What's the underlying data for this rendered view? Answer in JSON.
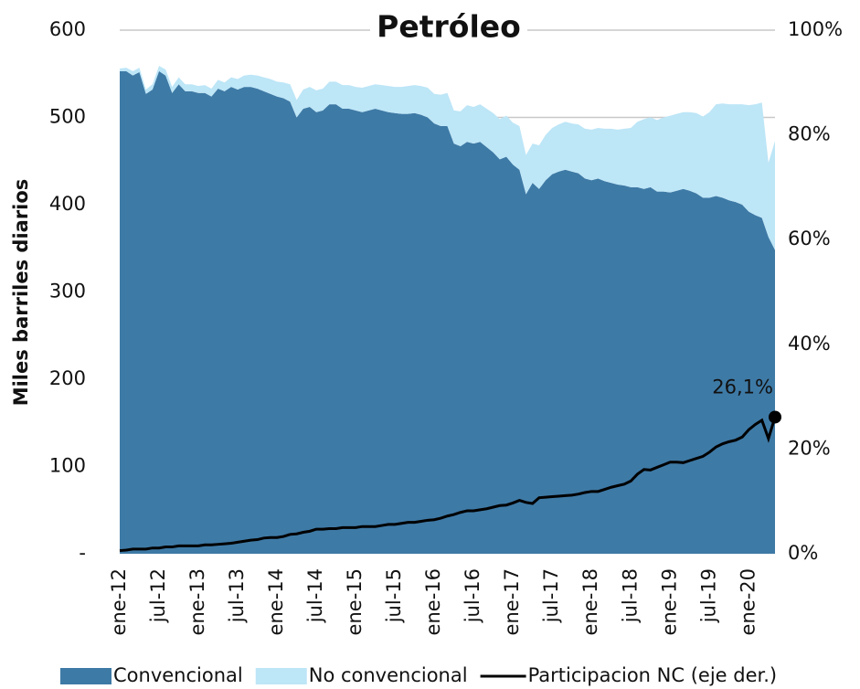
{
  "chart_data": {
    "type": "stacked-area-line",
    "title": "Petróleo",
    "y_label": "Miles barriles diarios",
    "categories": [
      "ene-12",
      null,
      null,
      null,
      null,
      null,
      "jul-12",
      null,
      null,
      null,
      null,
      null,
      "ene-13",
      null,
      null,
      null,
      null,
      null,
      "jul-13",
      null,
      null,
      null,
      null,
      null,
      "ene-14",
      null,
      null,
      null,
      null,
      null,
      "jul-14",
      null,
      null,
      null,
      null,
      null,
      "ene-15",
      null,
      null,
      null,
      null,
      null,
      "jul-15",
      null,
      null,
      null,
      null,
      null,
      "ene-16",
      null,
      null,
      null,
      null,
      null,
      "jul-16",
      null,
      null,
      null,
      null,
      null,
      "ene-17",
      null,
      null,
      null,
      null,
      null,
      "jul-17",
      null,
      null,
      null,
      null,
      null,
      "ene-18",
      null,
      null,
      null,
      null,
      null,
      "jul-18",
      null,
      null,
      null,
      null,
      null,
      "ene-19",
      null,
      null,
      null,
      null,
      null,
      "jul-19",
      null,
      null,
      null,
      null,
      null,
      "ene-20",
      null,
      null,
      null,
      null
    ],
    "series": [
      {
        "name": "Convencional",
        "color": "#3e7aa6",
        "axis": "y",
        "values": [
          553,
          553,
          548,
          552,
          527,
          532,
          553,
          548,
          528,
          538,
          530,
          530,
          528,
          528,
          524,
          533,
          530,
          535,
          532,
          535,
          535,
          533,
          530,
          527,
          524,
          522,
          518,
          500,
          510,
          512,
          506,
          508,
          515,
          515,
          510,
          510,
          508,
          506,
          508,
          510,
          508,
          506,
          505,
          504,
          504,
          505,
          503,
          500,
          493,
          490,
          490,
          470,
          467,
          472,
          470,
          472,
          466,
          460,
          452,
          455,
          446,
          440,
          412,
          425,
          418,
          428,
          435,
          438,
          440,
          438,
          436,
          430,
          428,
          430,
          427,
          425,
          423,
          422,
          420,
          420,
          418,
          420,
          415,
          415,
          414,
          416,
          418,
          416,
          413,
          408,
          408,
          410,
          408,
          405,
          403,
          400,
          392,
          388,
          385,
          363,
          348
        ]
      },
      {
        "name": "No convencional",
        "color": "#bde6f7",
        "axis": "y",
        "values": [
          3,
          4,
          5,
          5,
          5,
          6,
          6,
          7,
          7,
          8,
          8,
          8,
          8,
          9,
          9,
          10,
          10,
          11,
          12,
          13,
          14,
          15,
          16,
          17,
          17,
          18,
          20,
          20,
          22,
          23,
          25,
          25,
          26,
          26,
          27,
          27,
          27,
          28,
          28,
          28,
          29,
          30,
          30,
          31,
          32,
          32,
          33,
          34,
          34,
          36,
          38,
          38,
          40,
          42,
          42,
          43,
          44,
          45,
          46,
          47,
          48,
          50,
          45,
          45,
          50,
          52,
          53,
          54,
          55,
          55,
          56,
          57,
          58,
          58,
          60,
          62,
          63,
          65,
          68,
          75,
          80,
          80,
          82,
          85,
          88,
          88,
          88,
          90,
          92,
          93,
          98,
          105,
          108,
          110,
          112,
          115,
          122,
          127,
          132,
          85,
          125
        ]
      },
      {
        "name": "Participacion NC (eje der.)",
        "color": "#000000",
        "axis": "y2",
        "values": [
          0.6,
          0.7,
          0.9,
          0.9,
          0.9,
          1.1,
          1.1,
          1.3,
          1.3,
          1.5,
          1.5,
          1.5,
          1.5,
          1.7,
          1.7,
          1.8,
          1.9,
          2.0,
          2.2,
          2.4,
          2.6,
          2.7,
          3.0,
          3.1,
          3.1,
          3.3,
          3.7,
          3.8,
          4.1,
          4.3,
          4.7,
          4.7,
          4.8,
          4.8,
          5.0,
          5.0,
          5.0,
          5.2,
          5.2,
          5.2,
          5.4,
          5.6,
          5.6,
          5.8,
          6.0,
          6.0,
          6.2,
          6.4,
          6.5,
          6.8,
          7.2,
          7.5,
          7.9,
          8.2,
          8.2,
          8.4,
          8.6,
          8.9,
          9.2,
          9.3,
          9.7,
          10.2,
          9.8,
          9.6,
          10.7,
          10.8,
          10.9,
          11.0,
          11.1,
          11.2,
          11.4,
          11.7,
          11.9,
          11.9,
          12.3,
          12.7,
          13.0,
          13.3,
          13.9,
          15.2,
          16.1,
          16.0,
          16.5,
          17.0,
          17.5,
          17.5,
          17.4,
          17.8,
          18.2,
          18.6,
          19.4,
          20.4,
          21.0,
          21.4,
          21.7,
          22.3,
          23.7,
          24.7,
          25.5,
          22.0,
          26.1
        ],
        "value_labels": {
          "100": "26,1%"
        }
      }
    ],
    "ylim": [
      0,
      600
    ],
    "yticks": [
      {
        "value": 0,
        "label": "-"
      },
      100,
      200,
      300,
      400,
      500,
      600
    ],
    "y2lim": [
      0,
      100
    ],
    "y2ticks": [
      {
        "value": 0,
        "label": "0%"
      },
      {
        "value": 20,
        "label": "20%"
      },
      {
        "value": 40,
        "label": "40%"
      },
      {
        "value": 60,
        "label": "60%"
      },
      {
        "value": 80,
        "label": "80%"
      },
      {
        "value": 100,
        "label": "100%"
      }
    ],
    "grid": true,
    "legend": "bottom"
  }
}
